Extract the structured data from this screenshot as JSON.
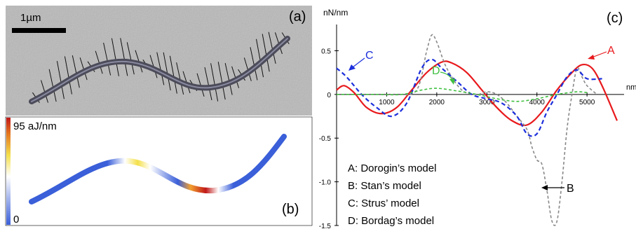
{
  "panel_a": {
    "label": "(a)",
    "scale_bar_label": "1µm"
  },
  "panel_b": {
    "label": "(b)",
    "colorbar_max_label": "95 aJ/nm",
    "colorbar_min_label": "0",
    "colors": {
      "low": "#3a5fd9",
      "high": "#c01818",
      "mid": "#f4e04a"
    }
  },
  "panel_c": {
    "label": "(c)",
    "legend": [
      "A: Dorogin’s model",
      "B: Stan’s model",
      "C: Strus’ model",
      "D: Bordag’s  model"
    ],
    "callouts": {
      "A": "A",
      "B": "B",
      "C": "C",
      "D": "D"
    }
  },
  "chart_data": {
    "type": "line",
    "title": "",
    "xlabel": "nm",
    "ylabel": "nN/nm",
    "xlim": [
      0,
      5600
    ],
    "ylim": [
      -1.5,
      0.8
    ],
    "x_ticks": [
      1000,
      2000,
      3000,
      4000,
      5000
    ],
    "y_ticks": [
      0.5,
      0,
      -0.5,
      -1.0,
      -1.5
    ],
    "y_tick_labels": [
      "0.5",
      "0",
      "-0.5",
      "-1.0",
      "-1.5"
    ],
    "grid": false,
    "series": [
      {
        "name": "A",
        "color": "#e8191c",
        "dash": "solid",
        "x": [
          0,
          150,
          350,
          600,
          900,
          1200,
          1500,
          1800,
          2100,
          2300,
          2600,
          2900,
          3200,
          3500,
          3800,
          4100,
          4400,
          4700,
          4900,
          5100,
          5300,
          5600
        ],
        "y": [
          0.05,
          0.1,
          0.02,
          -0.15,
          -0.22,
          -0.15,
          0.05,
          0.25,
          0.37,
          0.36,
          0.25,
          0.05,
          -0.15,
          -0.3,
          -0.35,
          -0.2,
          0.05,
          0.25,
          0.34,
          0.3,
          0.1,
          -0.3
        ]
      },
      {
        "name": "B",
        "color": "#888888",
        "dash": "4,3",
        "x": [
          0,
          400,
          800,
          1200,
          1600,
          1800,
          1900,
          2000,
          2200,
          2500,
          2800,
          3000,
          3200,
          3400,
          3600,
          3800,
          3900,
          4000,
          4100,
          4200,
          4300,
          4400,
          4500,
          4600,
          4700,
          4800,
          4900,
          5000,
          5200
        ],
        "y": [
          0,
          0,
          0,
          0,
          0.05,
          0.5,
          0.68,
          0.6,
          0.3,
          0.05,
          0,
          0.03,
          0,
          -0.1,
          -0.25,
          -0.4,
          -0.6,
          -0.75,
          -0.8,
          -1.1,
          -1.45,
          -1.45,
          -1.0,
          -0.4,
          0,
          0.3,
          0.2,
          0.1,
          0
        ]
      },
      {
        "name": "C",
        "color": "#1c2fdc",
        "dash": "6,4",
        "x": [
          0,
          200,
          500,
          800,
          1100,
          1400,
          1700,
          1900,
          2100,
          2400,
          2700,
          3000,
          3300,
          3600,
          3800,
          4000,
          4200,
          4400,
          4600,
          4800,
          5000,
          5300
        ],
        "y": [
          0.3,
          0.2,
          0.0,
          -0.15,
          -0.25,
          -0.1,
          0.3,
          0.4,
          0.3,
          0.15,
          0.0,
          -0.05,
          -0.1,
          -0.25,
          -0.45,
          -0.45,
          -0.2,
          0.0,
          0.2,
          0.28,
          0.18,
          0.18
        ]
      },
      {
        "name": "D",
        "color": "#3fbf3f",
        "dash": "4,3",
        "x": [
          0,
          800,
          1300,
          1700,
          2000,
          2400,
          2800,
          3200,
          3600,
          4000,
          4400,
          4800,
          5000
        ],
        "y": [
          0.0,
          0.0,
          0.0,
          0.05,
          0.07,
          0.04,
          0.0,
          -0.05,
          -0.08,
          -0.05,
          0.0,
          0.03,
          0.02
        ]
      }
    ]
  }
}
